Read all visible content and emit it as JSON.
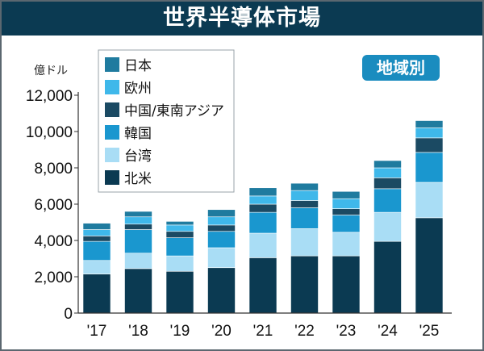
{
  "title": "世界半導体市場",
  "badge": "地域別",
  "chart_data": {
    "type": "bar",
    "stacked": true,
    "ylabel": "億ドル",
    "ylim": [
      0,
      12000
    ],
    "yticks": [
      "0",
      "2,000",
      "4,000",
      "6,000",
      "8,000",
      "10,000",
      "12,000"
    ],
    "ytick_values": [
      0,
      2000,
      4000,
      6000,
      8000,
      10000,
      12000
    ],
    "categories": [
      "'17",
      "'18",
      "'19",
      "'20",
      "'21",
      "'22",
      "'23",
      "'24",
      "'25"
    ],
    "grid": false,
    "legend_position": "top-left",
    "series": [
      {
        "name": "北米",
        "color": "#0b3a52",
        "values": [
          2150,
          2450,
          2300,
          2500,
          3050,
          3150,
          3150,
          3950,
          5250
        ]
      },
      {
        "name": "台湾",
        "color": "#a9ddf5",
        "values": [
          750,
          850,
          850,
          1100,
          1350,
          1500,
          1300,
          1600,
          1950
        ]
      },
      {
        "name": "韓国",
        "color": "#1a97cf",
        "values": [
          1050,
          1300,
          1000,
          900,
          1150,
          1150,
          950,
          1300,
          1650
        ]
      },
      {
        "name": "中国/東南アジア",
        "color": "#1b4a63",
        "values": [
          300,
          300,
          350,
          350,
          450,
          400,
          350,
          600,
          800
        ]
      },
      {
        "name": "欧州",
        "color": "#3fb8ea",
        "values": [
          350,
          400,
          350,
          450,
          450,
          550,
          550,
          550,
          550
        ]
      },
      {
        "name": "日本",
        "color": "#1f7b9f",
        "values": [
          350,
          300,
          200,
          400,
          450,
          400,
          400,
          400,
          400
        ]
      }
    ],
    "legend_order": [
      "日本",
      "欧州",
      "中国/東南アジア",
      "韓国",
      "台湾",
      "北米"
    ]
  }
}
